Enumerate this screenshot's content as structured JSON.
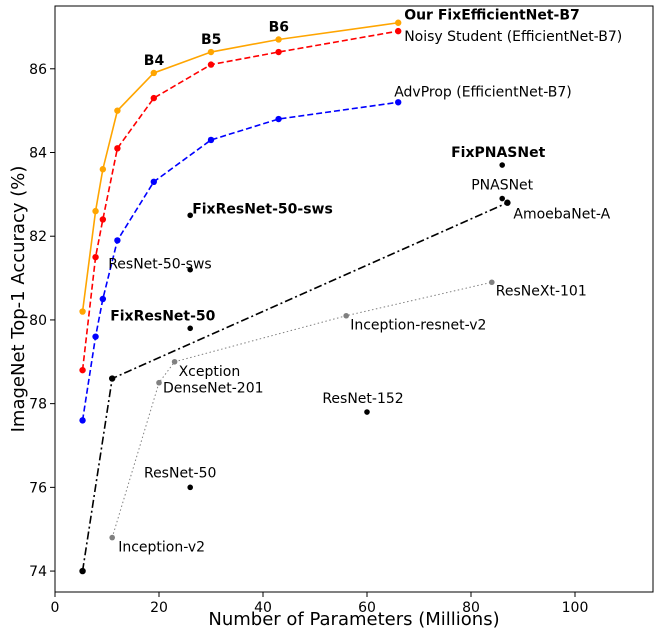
{
  "chart_data": {
    "type": "line",
    "title": "",
    "xlabel": "Number of Parameters (Millions)",
    "ylabel": "ImageNet Top-1 Accuracy (%)",
    "xlim": [
      0,
      115
    ],
    "ylim": [
      73.5,
      87.5
    ],
    "xticks": [
      0,
      20,
      40,
      60,
      80,
      100
    ],
    "yticks": [
      74,
      76,
      78,
      80,
      82,
      84,
      86
    ],
    "grid": false,
    "legend": "none",
    "series": [
      {
        "color": "#ffa500",
        "style": "solid",
        "x": [
          5.3,
          7.8,
          9.2,
          12,
          19,
          30,
          43,
          66
        ],
        "y": [
          80.2,
          82.6,
          83.6,
          85.0,
          85.9,
          86.4,
          86.7,
          87.1
        ],
        "label_points": [
          {
            "index": 4,
            "text": "B4",
            "bold": true
          },
          {
            "index": 5,
            "text": "B5",
            "bold": true
          },
          {
            "index": 6,
            "text": "B6",
            "bold": true
          },
          {
            "index": 7,
            "text": "Our FixEfficientNet-B7",
            "bold": true
          }
        ]
      },
      {
        "color": "#ff0000",
        "style": "dashed",
        "x": [
          5.3,
          7.8,
          9.2,
          12,
          19,
          30,
          43,
          66
        ],
        "y": [
          78.8,
          81.5,
          82.4,
          84.1,
          85.3,
          86.1,
          86.4,
          86.9
        ],
        "label_points": [
          {
            "index": 7,
            "text": "Noisy Student (EfficientNet-B7)",
            "bold": false
          }
        ]
      },
      {
        "color": "#0000ff",
        "style": "dashed",
        "x": [
          5.3,
          7.8,
          9.2,
          12,
          19,
          30,
          43,
          66
        ],
        "y": [
          77.6,
          79.6,
          80.5,
          81.9,
          83.3,
          84.3,
          84.8,
          85.2
        ],
        "label_points": [
          {
            "index": 7,
            "text": "AdvProp (EfficientNet-B7)",
            "bold": false
          }
        ]
      },
      {
        "color": "#000000",
        "style": "dashdot",
        "x": [
          5.3,
          11,
          87
        ],
        "y": [
          74.0,
          78.6,
          82.8
        ],
        "label_points": []
      },
      {
        "color": "#808080",
        "style": "dotted",
        "x": [
          11,
          20,
          23,
          56,
          84
        ],
        "y": [
          74.8,
          78.5,
          79.0,
          80.1,
          80.9
        ],
        "label_points": [
          {
            "index": 0,
            "text": "Inception-v2",
            "bold": false
          },
          {
            "index": 1,
            "text": "DenseNet-201",
            "bold": false
          },
          {
            "index": 2,
            "text": "Xception",
            "bold": false
          },
          {
            "index": 3,
            "text": "Inception-resnet-v2",
            "bold": false
          },
          {
            "index": 4,
            "text": "ResNeXt-101",
            "bold": false
          }
        ]
      }
    ],
    "points": [
      {
        "x": 86,
        "y": 83.7,
        "color": "#000000",
        "text": "FixPNASNet",
        "bold": true
      },
      {
        "x": 86,
        "y": 82.9,
        "color": "#000000",
        "text": "PNASNet",
        "bold": false
      },
      {
        "x": 87,
        "y": 82.8,
        "color": "#000000",
        "text": "AmoebaNet-A",
        "bold": false
      },
      {
        "x": 26,
        "y": 82.5,
        "color": "#000000",
        "text": "FixResNet-50-sws",
        "bold": true
      },
      {
        "x": 26,
        "y": 81.2,
        "color": "#000000",
        "text": "ResNet-50-sws",
        "bold": false
      },
      {
        "x": 26,
        "y": 79.8,
        "color": "#000000",
        "text": "FixResNet-50",
        "bold": true
      },
      {
        "x": 60,
        "y": 77.8,
        "color": "#000000",
        "text": "ResNet-152",
        "bold": false
      },
      {
        "x": 26,
        "y": 76.0,
        "color": "#000000",
        "text": "ResNet-50",
        "bold": false
      }
    ]
  }
}
